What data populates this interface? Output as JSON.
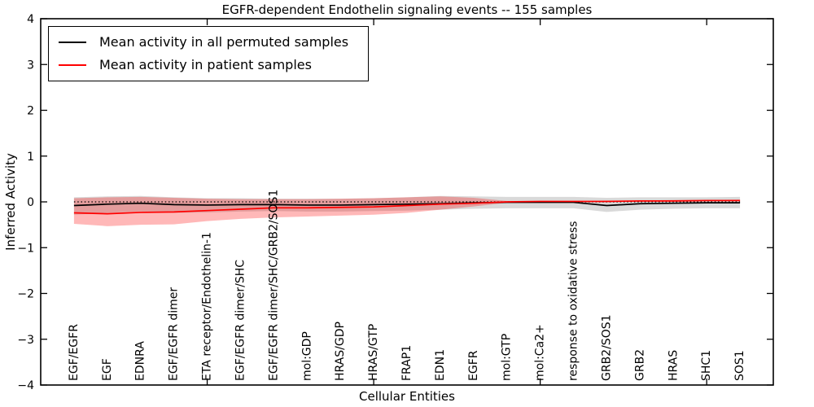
{
  "figure": {
    "title": "EGFR-dependent Endothelin signaling events -- 155 samples",
    "xlabel": "Cellular Entities",
    "ylabel": "Inferred Activity"
  },
  "legend": {
    "entries": [
      {
        "label": "Mean activity in all permuted samples",
        "color": "#000000"
      },
      {
        "label": "Mean activity in patient samples",
        "color": "#ff0000"
      }
    ]
  },
  "chart_data": {
    "type": "line",
    "title": "EGFR-dependent Endothelin signaling events -- 155 samples",
    "xlabel": "Cellular Entities",
    "ylabel": "Inferred Activity",
    "ylim": [
      -4,
      4
    ],
    "yticks": [
      -4,
      -3,
      -2,
      -1,
      0,
      1,
      2,
      3,
      4
    ],
    "x_major_tick_values": [
      5,
      10,
      15,
      20
    ],
    "grid": false,
    "zero_line": "dotted black horizontal line at y=0 spanning the data range",
    "legend_position": "upper left",
    "categories": [
      "EGF/EGFR",
      "EGF",
      "EDNRA",
      "EGF/EGFR dimer",
      "ETA receptor/Endothelin-1",
      "EGF/EGFR dimer/SHC",
      "EGF/EGFR dimer/SHC/GRB2/SOS1",
      "mol:GDP",
      "HRAS/GDP",
      "HRAS/GTP",
      "FRAP1",
      "EDN1",
      "EGFR",
      "mol:GTP",
      "mol:Ca2+",
      "response to oxidative stress",
      "GRB2/SOS1",
      "GRB2",
      "HRAS",
      "SHC1",
      "SOS1"
    ],
    "series": [
      {
        "name": "Mean activity in all permuted samples",
        "color": "#000000",
        "band_fill": "rgba(0,0,0,0.15)",
        "values": [
          -0.08,
          -0.05,
          -0.03,
          -0.06,
          -0.07,
          -0.06,
          -0.06,
          -0.07,
          -0.07,
          -0.06,
          -0.05,
          -0.04,
          -0.02,
          -0.01,
          -0.01,
          -0.01,
          -0.08,
          -0.04,
          -0.03,
          -0.02,
          -0.02
        ],
        "band_upper": [
          0.1,
          0.12,
          0.13,
          0.1,
          0.08,
          0.08,
          0.07,
          0.07,
          0.07,
          0.08,
          0.1,
          0.13,
          0.12,
          0.11,
          0.11,
          0.11,
          0.09,
          0.1,
          0.1,
          0.1,
          0.11
        ],
        "band_lower": [
          -0.28,
          -0.24,
          -0.21,
          -0.24,
          -0.23,
          -0.21,
          -0.2,
          -0.21,
          -0.21,
          -0.2,
          -0.19,
          -0.17,
          -0.15,
          -0.14,
          -0.14,
          -0.14,
          -0.22,
          -0.17,
          -0.15,
          -0.14,
          -0.14
        ]
      },
      {
        "name": "Mean activity in patient samples",
        "color": "#ff0000",
        "band_fill": "rgba(255,0,0,0.28)",
        "values": [
          -0.24,
          -0.26,
          -0.23,
          -0.22,
          -0.19,
          -0.16,
          -0.13,
          -0.13,
          -0.12,
          -0.11,
          -0.08,
          -0.05,
          -0.03,
          0.0,
          0.01,
          0.01,
          0.01,
          0.02,
          0.02,
          0.03,
          0.03
        ],
        "band_upper": [
          0.08,
          0.1,
          0.11,
          0.09,
          0.07,
          0.06,
          0.06,
          0.06,
          0.07,
          0.08,
          0.1,
          0.12,
          0.09,
          0.02,
          0.02,
          0.02,
          0.03,
          0.03,
          0.04,
          0.04,
          0.05
        ],
        "band_lower": [
          -0.48,
          -0.53,
          -0.5,
          -0.49,
          -0.42,
          -0.37,
          -0.34,
          -0.32,
          -0.3,
          -0.28,
          -0.24,
          -0.17,
          -0.1,
          -0.02,
          -0.01,
          -0.01,
          -0.01,
          0.0,
          0.0,
          0.01,
          0.01
        ]
      }
    ]
  }
}
